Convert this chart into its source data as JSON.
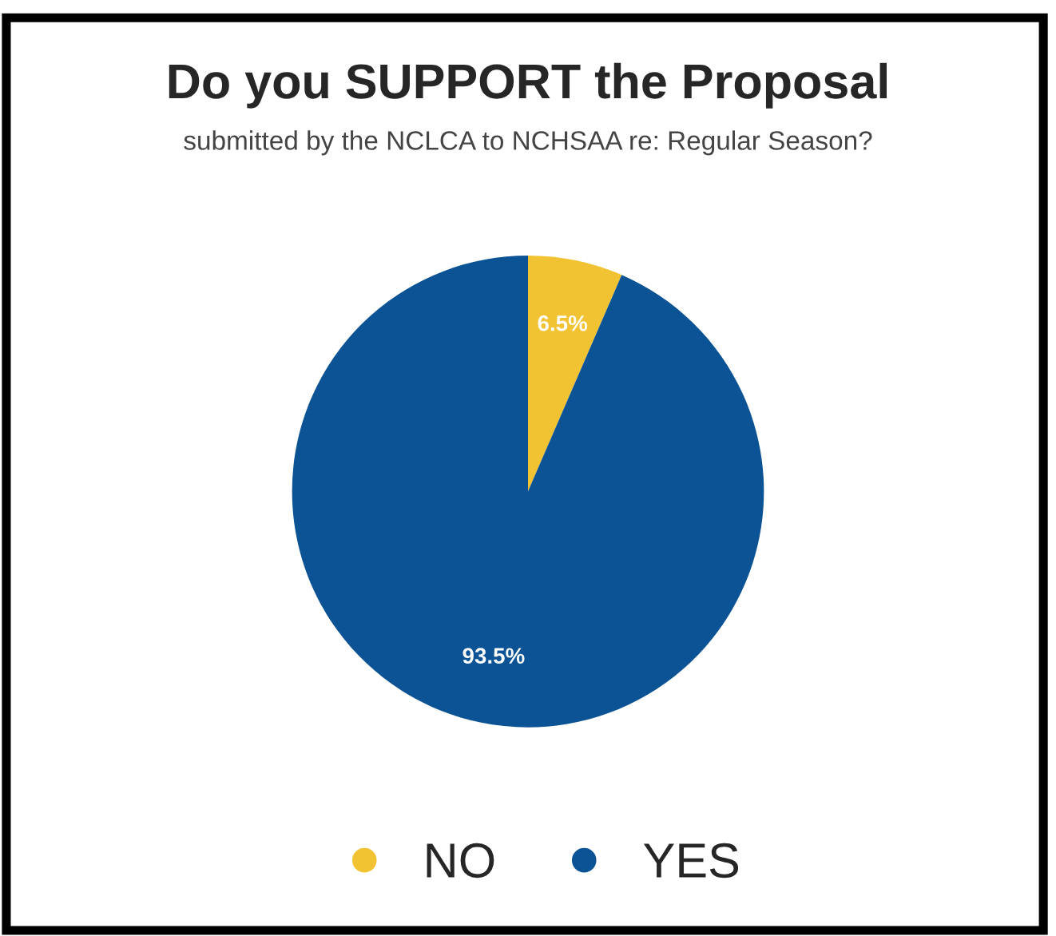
{
  "chart_data": {
    "type": "pie",
    "title": "Do you SUPPORT the Proposal",
    "subtitle": "submitted by the NCLCA to NCHSAA re: Regular Season?",
    "categories": [
      "NO",
      "YES"
    ],
    "values": [
      6.5,
      93.5
    ],
    "colors": [
      "#f1c232",
      "#0b5394"
    ],
    "value_labels": [
      "6.5%",
      "93.5%"
    ],
    "legend": "bottom"
  }
}
